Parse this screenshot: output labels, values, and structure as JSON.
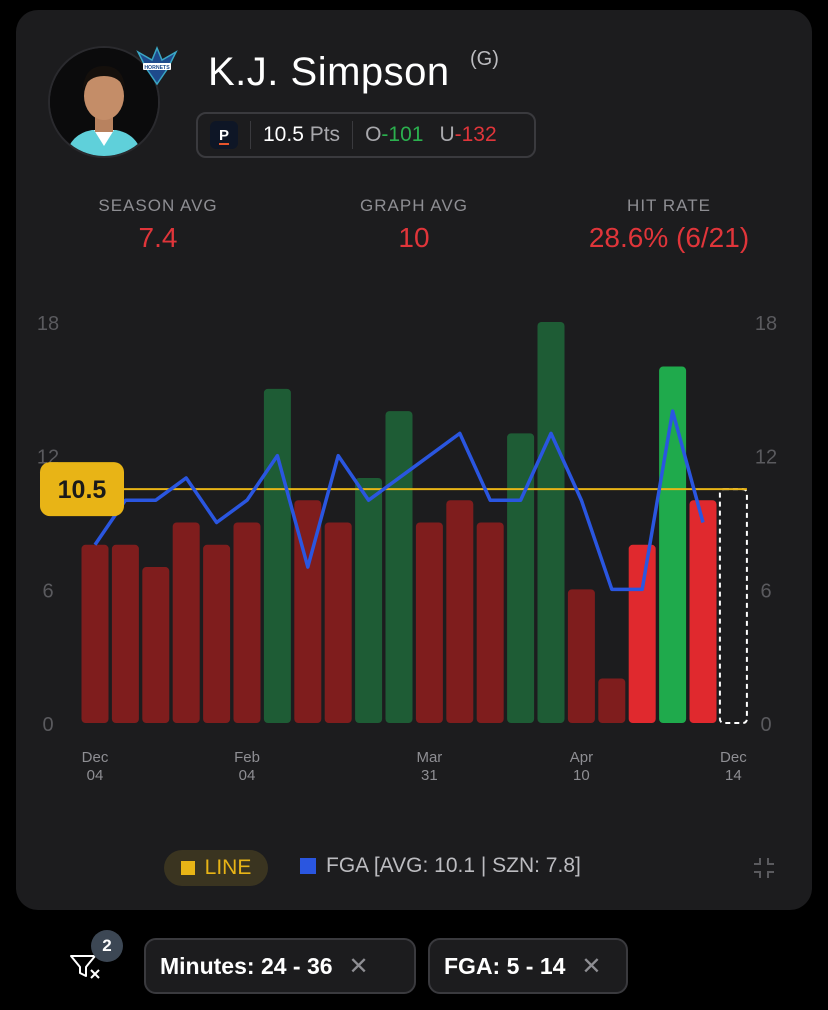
{
  "player": {
    "name": "K.J. Simpson",
    "position": "(G)",
    "team_logo_text": "HORNETS"
  },
  "prop": {
    "book_icon": "P",
    "line_value": "10.5",
    "stat": "Pts",
    "over_label": "O",
    "over_odds": "-101",
    "under_label": "U",
    "under_odds": "-132"
  },
  "stats": {
    "season_avg_label": "SEASON AVG",
    "season_avg_value": "7.4",
    "graph_avg_label": "GRAPH AVG",
    "graph_avg_value": "10",
    "hit_rate_label": "HIT RATE",
    "hit_rate_value": "28.6% (6/21)"
  },
  "chart_data": {
    "type": "bar",
    "y_ticks": [
      "18",
      "12",
      "6",
      "0"
    ],
    "ylim": [
      0,
      18
    ],
    "line": 10.5,
    "line_label": "10.5",
    "x_labels": [
      {
        "index": 0,
        "top": "Dec",
        "bottom": "04"
      },
      {
        "index": 5,
        "top": "Feb",
        "bottom": "04"
      },
      {
        "index": 11,
        "top": "Mar",
        "bottom": "31"
      },
      {
        "index": 16,
        "top": "Apr",
        "bottom": "10"
      },
      {
        "index": 21,
        "top": "Dec",
        "bottom": "14"
      }
    ],
    "series": [
      {
        "name": "Points",
        "values": [
          8,
          8,
          7,
          9,
          8,
          9,
          15,
          10,
          9,
          11,
          14,
          9,
          10,
          9,
          13,
          18,
          6,
          2,
          8,
          16,
          10
        ],
        "status": [
          "miss_old",
          "miss_old",
          "miss_old",
          "miss_old",
          "miss_old",
          "miss_old",
          "hit_old",
          "miss_old",
          "miss_old",
          "hit_old",
          "hit_old",
          "miss_old",
          "miss_old",
          "miss_old",
          "hit_old",
          "hit_old",
          "miss_old",
          "miss_old",
          "miss",
          "hit",
          "miss"
        ]
      },
      {
        "name": "FGA",
        "values": [
          8,
          10,
          10,
          11,
          9,
          10,
          12,
          7,
          12,
          10,
          11,
          12,
          13,
          10,
          10,
          13,
          10,
          6,
          6,
          14,
          9
        ]
      }
    ],
    "upcoming_index": 21
  },
  "legend": {
    "line_label": "LINE",
    "fga_label": "FGA [AVG: 10.1 | SZN: 7.8]"
  },
  "filters": {
    "count": "2",
    "chips": [
      {
        "label": "Minutes: 24 - 36"
      },
      {
        "label": "FGA: 5 - 14"
      }
    ]
  },
  "colors": {
    "miss_old": "#7f1d1d",
    "hit_old": "#1e5c35",
    "miss": "#e0292e",
    "hit": "#1faa4c",
    "line": "#e8b416",
    "fga": "#2a56e0"
  }
}
